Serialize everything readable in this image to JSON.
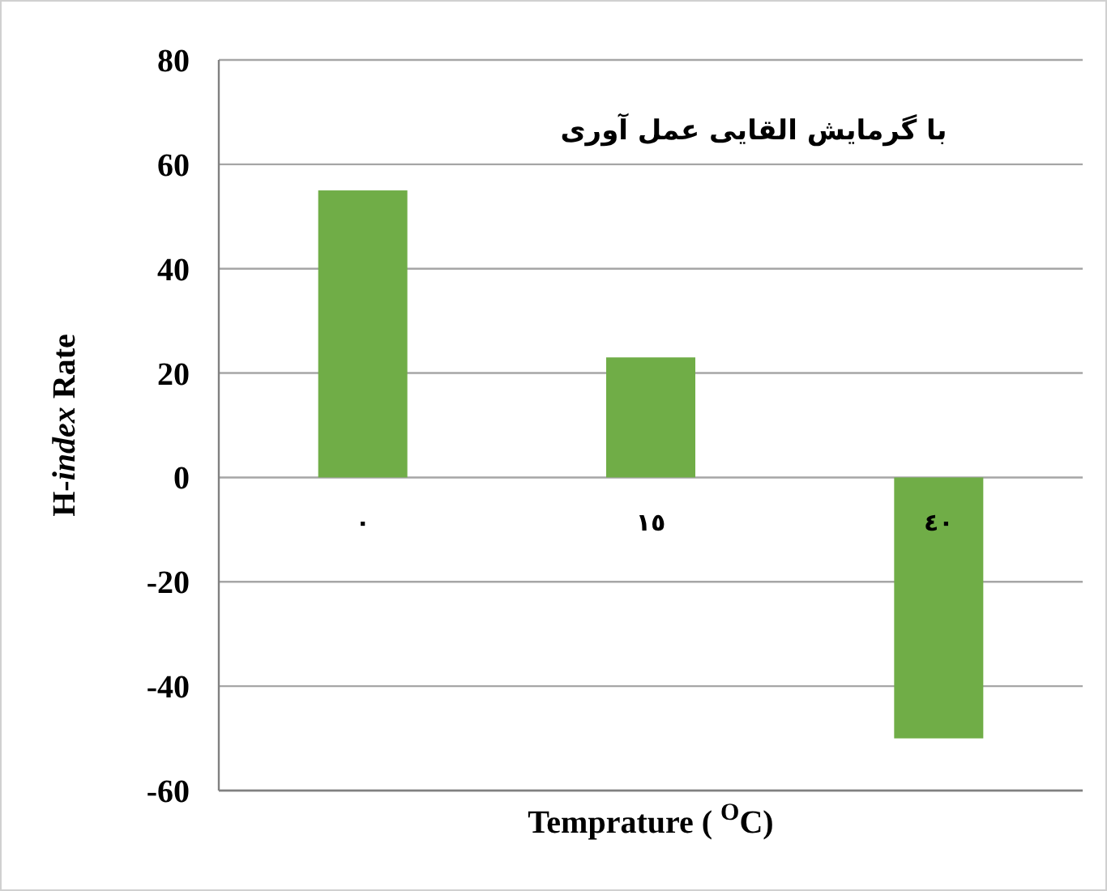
{
  "chart_data": {
    "type": "bar",
    "title": "با گرمایش القایی عمل آوری",
    "xlabel": "Temprature ( $^{O}$C)",
    "ylabel": "H-*index* Rate",
    "categories": [
      "٠",
      "١٥",
      "٤٠"
    ],
    "values": [
      55,
      23,
      -50
    ],
    "color": "#70ad47",
    "ylim": [
      -60,
      80
    ],
    "yticks": [
      -60,
      -40,
      -20,
      0,
      20,
      40,
      60,
      80
    ],
    "grid": "y"
  }
}
